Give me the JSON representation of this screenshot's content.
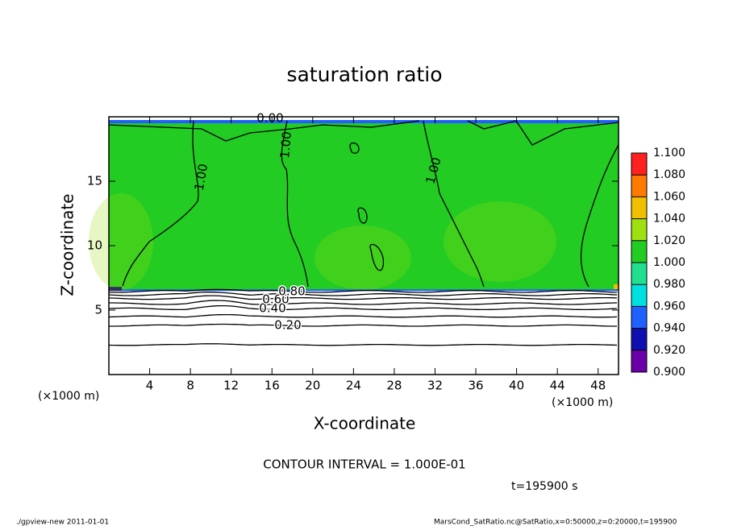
{
  "chart_data": {
    "type": "contour",
    "title": "saturation ratio",
    "x_label": "X-coordinate",
    "y_label": "Z-coordinate",
    "x_unit": "(×1000 m)",
    "y_unit": "(×1000 m)",
    "xlim": [
      0,
      50
    ],
    "xticks": [
      4,
      8,
      12,
      16,
      20,
      24,
      28,
      32,
      36,
      40,
      44,
      48
    ],
    "ylim": [
      0,
      20
    ],
    "yticks": [
      5,
      10,
      15
    ],
    "colorbar": {
      "levels": [
        {
          "value": 0.9,
          "label": "0.900"
        },
        {
          "value": 0.92,
          "label": "0.920"
        },
        {
          "value": 0.94,
          "label": "0.940"
        },
        {
          "value": 0.96,
          "label": "0.960"
        },
        {
          "value": 0.98,
          "label": "0.980"
        },
        {
          "value": 1.0,
          "label": "1.000"
        },
        {
          "value": 1.02,
          "label": "1.020"
        },
        {
          "value": 1.04,
          "label": "1.040"
        },
        {
          "value": 1.06,
          "label": "1.060"
        },
        {
          "value": 1.08,
          "label": "1.080"
        },
        {
          "value": 1.1,
          "label": "1.100"
        }
      ],
      "colors": [
        "#6a00a8",
        "#1010b0",
        "#2060ff",
        "#00e0e0",
        "#20e090",
        "#22cc22",
        "#a0e010",
        "#f0c000",
        "#ff7a00",
        "#ff2020"
      ]
    },
    "contour_labels": [
      {
        "value": 0.2,
        "label": "0.20"
      },
      {
        "value": 0.4,
        "label": "0.40"
      },
      {
        "value": 0.6,
        "label": "0.60"
      },
      {
        "value": 0.8,
        "label": "0.80"
      },
      {
        "value": 1.0,
        "label": "1.00"
      },
      {
        "value": 1.0,
        "label": "1.00"
      },
      {
        "value": 1.0,
        "label": "1.00"
      },
      {
        "value": 0.0,
        "label": "0.00"
      }
    ],
    "contour_interval": "CONTOUR INTERVAL = 1.000E-01",
    "time": "t=195900 s",
    "footer_left": "./gpview-new  2011-01-01",
    "footer_right": "MarsCond_SatRatio.nc@SatRatio,x=0:50000,z=0:20000,t=195900"
  }
}
